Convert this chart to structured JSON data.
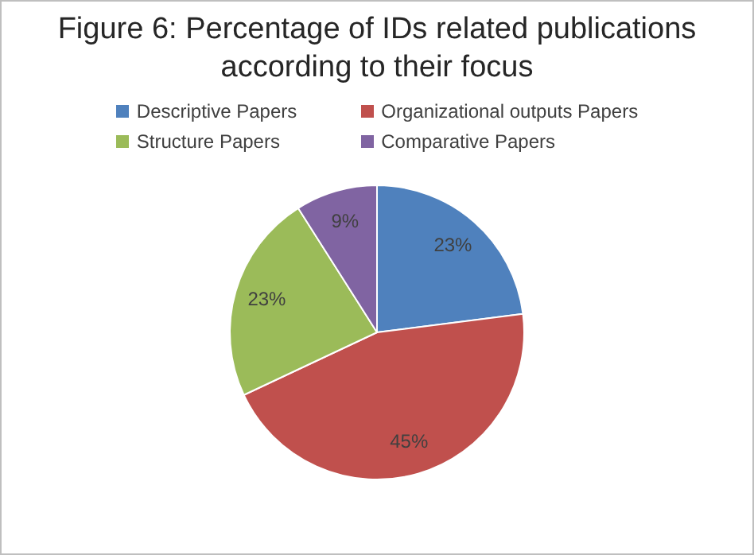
{
  "chart_data": {
    "type": "pie",
    "title": "Figure 6: Percentage of IDs related publications according to their focus",
    "categories": [
      "Descriptive Papers",
      "Organizational outputs Papers",
      "Structure Papers",
      "Comparative Papers"
    ],
    "values": [
      23,
      45,
      23,
      9
    ],
    "colors": [
      "#4f81bd",
      "#c0504d",
      "#9bbb59",
      "#8064a2"
    ],
    "value_labels": [
      "23%",
      "45%",
      "23%",
      "9%"
    ],
    "legend": "top"
  }
}
